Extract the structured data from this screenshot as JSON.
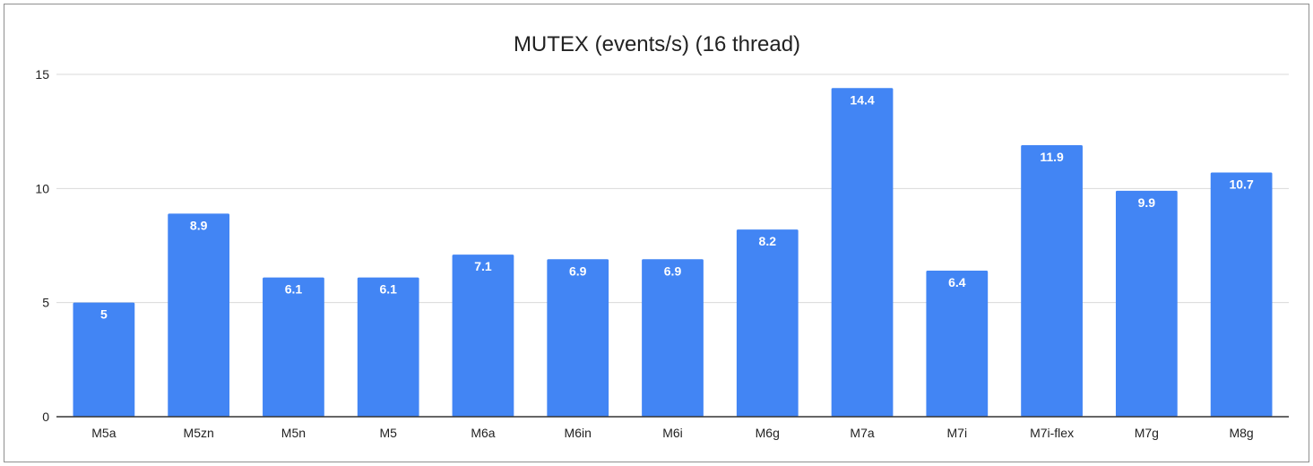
{
  "chart_data": {
    "type": "bar",
    "title": "MUTEX (events/s) (16 thread)",
    "xlabel": "",
    "ylabel": "",
    "categories": [
      "M5a",
      "M5zn",
      "M5n",
      "M5",
      "M6a",
      "M6in",
      "M6i",
      "M6g",
      "M7a",
      "M7i",
      "M7i-flex",
      "M7g",
      "M8g"
    ],
    "values": [
      5,
      8.9,
      6.1,
      6.1,
      7.1,
      6.9,
      6.9,
      8.2,
      14.4,
      6.4,
      11.9,
      9.9,
      10.7
    ],
    "data_labels": [
      "5",
      "8.9",
      "6.1",
      "6.1",
      "7.1",
      "6.9",
      "6.9",
      "8.2",
      "14.4",
      "6.4",
      "11.9",
      "9.9",
      "10.7"
    ],
    "ylim": [
      0,
      15
    ],
    "yticks": [
      0,
      5,
      10,
      15
    ],
    "ytick_labels": [
      "0",
      "5",
      "10",
      "15"
    ],
    "grid": true,
    "legend": "none",
    "bar_color": "#4285f4",
    "grid_color": "#d9d9d9",
    "axis_color": "#333333"
  }
}
